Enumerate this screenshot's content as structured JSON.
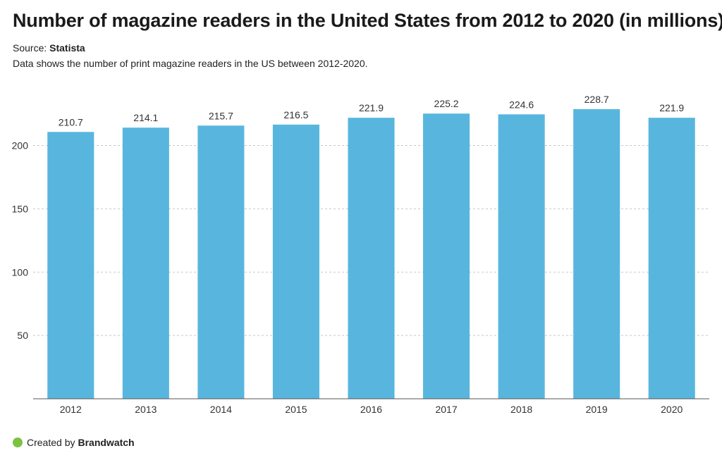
{
  "header": {
    "title": "Number of magazine readers in the United States from 2012 to 2020 (in millions)",
    "source_label": "Source:",
    "source_name": "Statista",
    "description": "Data shows the number of print magazine readers in the US between 2012-2020."
  },
  "footer": {
    "created_by": "Created by",
    "brand": "Brandwatch",
    "brand_color": "#7cc242"
  },
  "chart_data": {
    "type": "bar",
    "categories": [
      "2012",
      "2013",
      "2014",
      "2015",
      "2016",
      "2017",
      "2018",
      "2019",
      "2020"
    ],
    "values": [
      210.7,
      214.1,
      215.7,
      216.5,
      221.9,
      225.2,
      224.6,
      228.7,
      221.9
    ],
    "value_labels": [
      "210.7",
      "214.1",
      "215.7",
      "216.5",
      "221.9",
      "225.2",
      "224.6",
      "228.7",
      "221.9"
    ],
    "yticks": [
      50,
      100,
      150,
      200
    ],
    "ylim": [
      0,
      237
    ],
    "bar_color": "#58b6de",
    "grid": true,
    "xlabel": "",
    "ylabel": ""
  }
}
